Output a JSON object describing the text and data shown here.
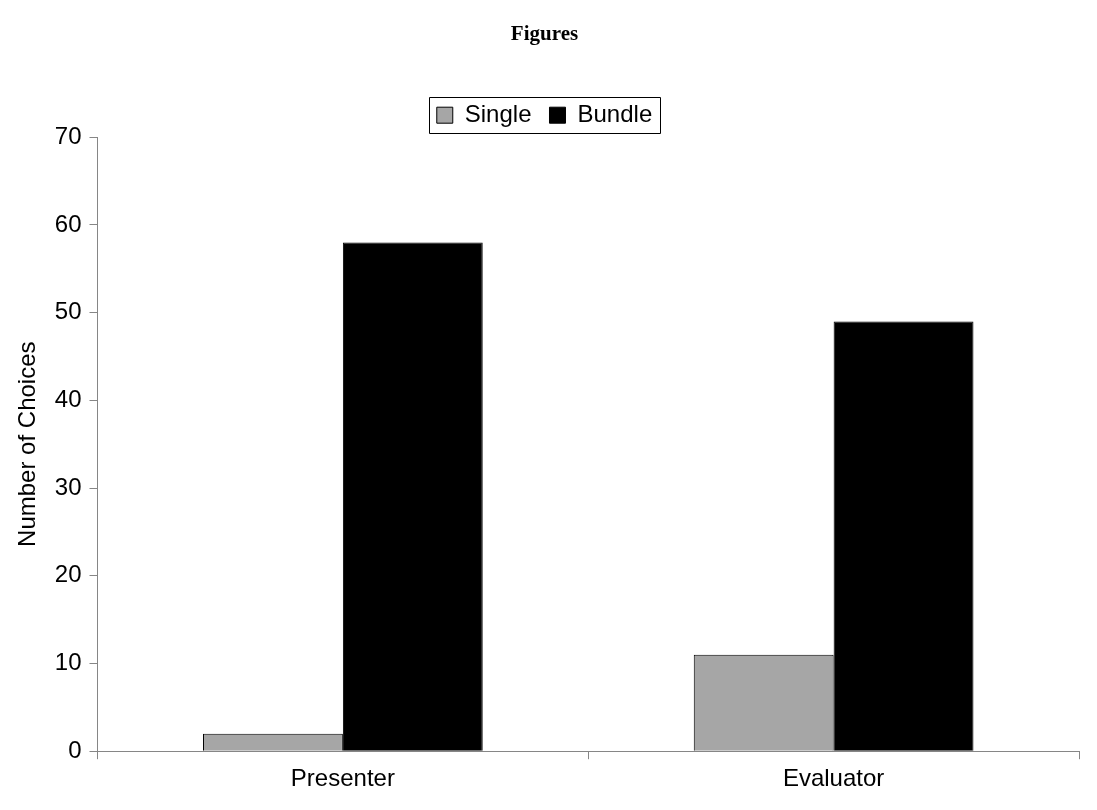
{
  "chart_data": {
    "type": "bar",
    "title": "Figures",
    "ylabel": "Number of Choices",
    "categories": [
      "Presenter",
      "Evaluator"
    ],
    "series": [
      {
        "name": "Single",
        "color": "#a6a6a6",
        "values": [
          2,
          11
        ]
      },
      {
        "name": "Bundle",
        "color": "#000000",
        "values": [
          58,
          49
        ]
      }
    ],
    "ylim": [
      0,
      70
    ],
    "yticks": [
      0,
      10,
      20,
      30,
      40,
      50,
      60,
      70
    ],
    "grid": false,
    "legend": "top"
  }
}
